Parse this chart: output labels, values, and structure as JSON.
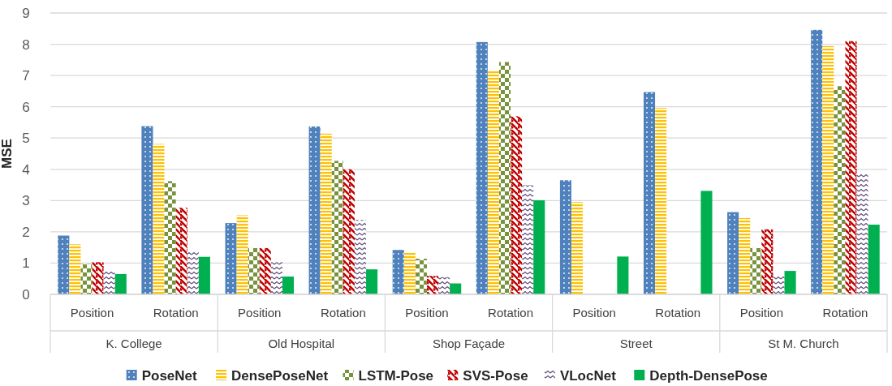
{
  "chart_data": {
    "type": "bar",
    "ylabel": "MSE",
    "categories": [
      "Position",
      "Rotation",
      "Position",
      "Rotation",
      "Position",
      "Rotation",
      "Position",
      "Rotation",
      "Position",
      "Rotation"
    ],
    "annotations": [
      "K. College",
      "Old Hospital",
      "Shop Façade",
      "Street",
      "St M. Church"
    ],
    "series": [
      {
        "name": "PoseNet",
        "color": "#4f81bd",
        "values": [
          1.88,
          5.38,
          2.28,
          5.37,
          1.42,
          8.07,
          3.65,
          6.47,
          2.63,
          8.46
        ]
      },
      {
        "name": "DensePoseNet",
        "color": "#ffc000",
        "values": [
          1.6,
          4.81,
          2.53,
          5.14,
          1.36,
          7.16,
          2.95,
          5.96,
          2.44,
          7.94
        ]
      },
      {
        "name": "LSTM-Pose",
        "color": "#77933c",
        "values": [
          0.97,
          3.62,
          1.48,
          4.27,
          1.14,
          7.43,
          null,
          null,
          1.48,
          6.66
        ]
      },
      {
        "name": "SVS-Pose",
        "color": "#c00000",
        "values": [
          1.03,
          2.77,
          1.48,
          4.0,
          0.59,
          5.7,
          null,
          null,
          2.08,
          8.1
        ]
      },
      {
        "name": "VLocNet",
        "color": "#604a7b",
        "values": [
          0.77,
          1.4,
          1.03,
          2.38,
          0.55,
          3.49,
          null,
          null,
          0.59,
          3.89
        ]
      },
      {
        "name": "Depth-DensePose",
        "color": "#00b050",
        "values": [
          0.65,
          1.2,
          0.57,
          0.8,
          0.35,
          3.01,
          1.21,
          3.31,
          0.75,
          2.23
        ]
      }
    ],
    "ylim": [
      0,
      9
    ],
    "yticks": [
      0,
      1,
      2,
      3,
      4,
      5,
      6,
      7,
      8,
      9
    ],
    "grid": "y",
    "legend": "bottom"
  }
}
